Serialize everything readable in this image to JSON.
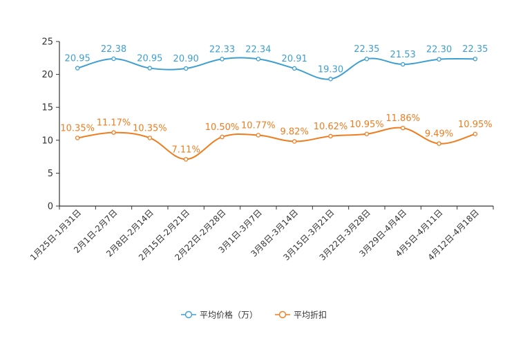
{
  "chart_data": {
    "type": "line",
    "categories": [
      "1月25日-1月31日",
      "2月1日-2月7日",
      "2月8日-2月14日",
      "2月15日-2月21日",
      "2月22日-2月28日",
      "3月1日-3月7日",
      "3月8日-3月14日",
      "3月15日-3月21日",
      "3月22日-3月28日",
      "3月29日-4月4日",
      "4月5日-4月11日",
      "4月12日-4月18日"
    ],
    "series": [
      {
        "name": "平均价格（万）",
        "color": "#3d9fd1",
        "values": [
          20.95,
          22.38,
          20.95,
          20.9,
          22.33,
          22.34,
          20.91,
          19.3,
          22.35,
          21.53,
          22.3,
          22.35
        ],
        "labels": [
          "20.95",
          "22.38",
          "20.95",
          "20.90",
          "22.33",
          "22.34",
          "20.91",
          "19.30",
          "22.35",
          "21.53",
          "22.30",
          "22.35"
        ]
      },
      {
        "name": "平均折扣",
        "color": "#f07c1e",
        "values": [
          10.35,
          11.17,
          10.35,
          7.11,
          10.5,
          10.77,
          9.82,
          10.62,
          10.95,
          11.86,
          9.49,
          10.95
        ],
        "labels": [
          "10.35%",
          "11.17%",
          "10.35%",
          "7.11%",
          "10.50%",
          "10.77%",
          "9.82%",
          "10.62%",
          "10.95%",
          "11.86%",
          "9.49%",
          "10.95%"
        ]
      }
    ],
    "yticks": [
      "0",
      "5",
      "10",
      "15",
      "20",
      "25"
    ],
    "ylim": [
      0,
      25
    ],
    "grid": false,
    "legend_position": "bottom-center",
    "title": "",
    "xlabel": "",
    "ylabel": ""
  }
}
